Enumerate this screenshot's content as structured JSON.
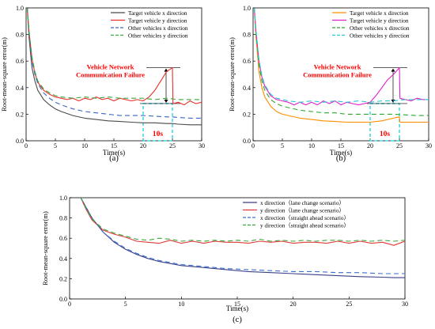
{
  "chart_data": [
    {
      "type": "line",
      "panel_label": "(a)",
      "xlabel": "Time(s)",
      "ylabel": "Root-mean-square error(m)",
      "xlim": [
        0,
        30
      ],
      "ylim": [
        0,
        1.0
      ],
      "xticks": [
        0,
        5,
        10,
        15,
        20,
        25,
        30
      ],
      "yticks": [
        0.0,
        0.2,
        0.4,
        0.6,
        0.8,
        1.0
      ],
      "legend_position": "top-right",
      "annotation": {
        "text": "Vehicle Network\nCommunication Failure",
        "color": "#ff0000"
      },
      "duration_label": "10s",
      "failure_window": [
        20,
        25
      ],
      "series": [
        {
          "name": "Target vehicle x direction",
          "color": "#4a4a4a",
          "dash": "",
          "x": [
            0.2,
            0.5,
            1,
            1.5,
            2,
            3,
            4,
            5,
            6,
            8,
            10,
            12,
            14,
            16,
            18,
            20,
            22,
            24,
            25,
            26,
            28,
            30
          ],
          "y": [
            1.0,
            0.78,
            0.55,
            0.45,
            0.38,
            0.31,
            0.27,
            0.24,
            0.22,
            0.19,
            0.17,
            0.16,
            0.15,
            0.145,
            0.14,
            0.135,
            0.135,
            0.13,
            0.13,
            0.125,
            0.12,
            0.12
          ]
        },
        {
          "name": "Target vehicle y direction",
          "color": "#e8302a",
          "dash": "",
          "x": [
            0.2,
            0.5,
            1,
            1.5,
            2,
            3,
            4,
            5,
            6,
            7,
            8,
            9,
            10,
            11,
            12,
            13,
            14,
            15,
            16,
            17,
            18,
            19,
            20,
            21,
            22,
            23,
            24,
            25,
            25.1,
            26,
            27,
            28,
            29,
            30
          ],
          "y": [
            1.0,
            0.82,
            0.62,
            0.51,
            0.44,
            0.38,
            0.35,
            0.33,
            0.32,
            0.31,
            0.32,
            0.3,
            0.32,
            0.31,
            0.33,
            0.31,
            0.32,
            0.3,
            0.32,
            0.31,
            0.3,
            0.31,
            0.3,
            0.33,
            0.38,
            0.45,
            0.52,
            0.55,
            0.28,
            0.29,
            0.27,
            0.3,
            0.28,
            0.29
          ]
        },
        {
          "name": "Other vehicles x direction",
          "color": "#3a66c4",
          "dash": "6,4",
          "x": [
            0.2,
            0.5,
            1,
            1.5,
            2,
            3,
            4,
            5,
            6,
            8,
            10,
            12,
            14,
            16,
            18,
            20,
            22,
            24,
            25,
            26,
            28,
            30
          ],
          "y": [
            1.0,
            0.8,
            0.6,
            0.5,
            0.43,
            0.36,
            0.32,
            0.29,
            0.27,
            0.24,
            0.22,
            0.21,
            0.2,
            0.19,
            0.19,
            0.19,
            0.185,
            0.18,
            0.18,
            0.175,
            0.17,
            0.17
          ]
        },
        {
          "name": "Other vehicles y direction",
          "color": "#3aa83a",
          "dash": "6,4",
          "x": [
            0.2,
            0.5,
            1,
            1.5,
            2,
            3,
            4,
            5,
            6,
            8,
            10,
            12,
            14,
            16,
            18,
            20,
            22,
            24,
            26,
            28,
            30
          ],
          "y": [
            1.0,
            0.83,
            0.63,
            0.52,
            0.45,
            0.39,
            0.36,
            0.34,
            0.33,
            0.32,
            0.33,
            0.32,
            0.33,
            0.32,
            0.32,
            0.32,
            0.31,
            0.32,
            0.31,
            0.31,
            0.31
          ]
        }
      ]
    },
    {
      "type": "line",
      "panel_label": "(b)",
      "xlabel": "Time(s)",
      "ylabel": "Root-mean-square error(m)",
      "xlim": [
        0,
        30
      ],
      "ylim": [
        0,
        1.0
      ],
      "xticks": [
        0,
        5,
        10,
        15,
        20,
        25,
        30
      ],
      "yticks": [
        0.0,
        0.2,
        0.4,
        0.6,
        0.8,
        1.0
      ],
      "legend_position": "top-right",
      "annotation": {
        "text": "Vehicle Network\nCommunication Failure",
        "color": "#ff0000"
      },
      "duration_label": "10s",
      "failure_window": [
        20,
        25
      ],
      "series": [
        {
          "name": "Target vehicle x direction",
          "color": "#ff8c00",
          "dash": "",
          "x": [
            0.2,
            0.5,
            1,
            1.5,
            2,
            3,
            4,
            5,
            6,
            8,
            10,
            12,
            14,
            16,
            18,
            20,
            22,
            24,
            25,
            25.1,
            26,
            28,
            30
          ],
          "y": [
            1.0,
            0.78,
            0.52,
            0.4,
            0.33,
            0.26,
            0.22,
            0.2,
            0.19,
            0.17,
            0.16,
            0.15,
            0.145,
            0.14,
            0.14,
            0.14,
            0.15,
            0.17,
            0.18,
            0.14,
            0.14,
            0.14,
            0.14
          ]
        },
        {
          "name": "Target vehicle y direction",
          "color": "#e020c8",
          "dash": "",
          "x": [
            0.2,
            0.5,
            1,
            1.5,
            2,
            3,
            4,
            5,
            6,
            7,
            8,
            9,
            10,
            11,
            12,
            13,
            14,
            15,
            16,
            17,
            18,
            19,
            20,
            21,
            22,
            23,
            24,
            25,
            25.1,
            26,
            27,
            28,
            29,
            30
          ],
          "y": [
            1.0,
            0.82,
            0.6,
            0.48,
            0.41,
            0.34,
            0.31,
            0.3,
            0.29,
            0.27,
            0.29,
            0.27,
            0.29,
            0.27,
            0.3,
            0.28,
            0.3,
            0.27,
            0.29,
            0.28,
            0.27,
            0.28,
            0.29,
            0.34,
            0.4,
            0.46,
            0.5,
            0.55,
            0.32,
            0.31,
            0.3,
            0.32,
            0.31,
            0.31
          ]
        },
        {
          "name": "Other vehicles x direction",
          "color": "#2fa82f",
          "dash": "6,4",
          "x": [
            0.2,
            0.5,
            1,
            1.5,
            2,
            3,
            4,
            5,
            6,
            8,
            10,
            12,
            14,
            16,
            18,
            20,
            22,
            24,
            26,
            28,
            30
          ],
          "y": [
            1.0,
            0.8,
            0.57,
            0.45,
            0.38,
            0.31,
            0.28,
            0.26,
            0.25,
            0.23,
            0.22,
            0.21,
            0.21,
            0.2,
            0.2,
            0.2,
            0.2,
            0.2,
            0.195,
            0.19,
            0.19
          ]
        },
        {
          "name": "Other vehicles y direction",
          "color": "#29c4d8",
          "dash": "6,4",
          "x": [
            0.2,
            0.5,
            1,
            1.5,
            2,
            3,
            4,
            5,
            6,
            8,
            10,
            12,
            14,
            16,
            18,
            20,
            22,
            24,
            26,
            28,
            30
          ],
          "y": [
            1.0,
            0.83,
            0.61,
            0.49,
            0.42,
            0.35,
            0.32,
            0.31,
            0.3,
            0.29,
            0.3,
            0.29,
            0.3,
            0.29,
            0.3,
            0.29,
            0.3,
            0.3,
            0.31,
            0.31,
            0.31
          ]
        }
      ]
    },
    {
      "type": "line",
      "panel_label": "(c)",
      "xlabel": "Time(s)",
      "ylabel": "Root-mean-square error(m)",
      "xlim": [
        0,
        30
      ],
      "ylim": [
        0,
        1.0
      ],
      "xticks": [
        0,
        5,
        10,
        15,
        20,
        25,
        30
      ],
      "yticks": [
        0.0,
        0.2,
        0.4,
        0.6,
        0.8,
        1.0
      ],
      "legend_position": "top-right",
      "series": [
        {
          "name": "x direction（lane change scenario）",
          "color": "#3a3f88",
          "dash": "",
          "x": [
            1,
            1.5,
            2,
            3,
            4,
            5,
            6,
            7,
            8,
            9,
            10,
            12,
            14,
            16,
            18,
            20,
            22,
            24,
            26,
            28,
            29,
            30
          ],
          "y": [
            1.0,
            0.9,
            0.8,
            0.66,
            0.56,
            0.49,
            0.44,
            0.4,
            0.37,
            0.35,
            0.33,
            0.31,
            0.29,
            0.27,
            0.26,
            0.25,
            0.24,
            0.23,
            0.22,
            0.215,
            0.21,
            0.21
          ]
        },
        {
          "name": "y direction（lane change scenario）",
          "color": "#e03a3a",
          "dash": "",
          "x": [
            1,
            1.5,
            2,
            3,
            4,
            5,
            6,
            7,
            8,
            9,
            10,
            11,
            12,
            13,
            14,
            15,
            16,
            17,
            18,
            19,
            20,
            21,
            22,
            23,
            24,
            25,
            26,
            27,
            28,
            29,
            30
          ],
          "y": [
            1.0,
            0.88,
            0.78,
            0.68,
            0.64,
            0.61,
            0.57,
            0.56,
            0.55,
            0.58,
            0.55,
            0.57,
            0.55,
            0.57,
            0.56,
            0.56,
            0.55,
            0.57,
            0.56,
            0.57,
            0.55,
            0.56,
            0.56,
            0.55,
            0.57,
            0.55,
            0.57,
            0.55,
            0.56,
            0.53,
            0.57
          ]
        },
        {
          "name": "x direction（straight ahead scenario）",
          "color": "#3a6fd0",
          "dash": "6,4",
          "x": [
            1,
            1.5,
            2,
            3,
            4,
            5,
            6,
            7,
            8,
            9,
            10,
            12,
            14,
            16,
            18,
            20,
            22,
            24,
            26,
            28,
            29,
            30
          ],
          "y": [
            1.0,
            0.9,
            0.8,
            0.66,
            0.57,
            0.5,
            0.45,
            0.41,
            0.38,
            0.36,
            0.34,
            0.32,
            0.3,
            0.29,
            0.28,
            0.27,
            0.27,
            0.26,
            0.26,
            0.25,
            0.25,
            0.25
          ]
        },
        {
          "name": "y direction（straight ahead scenario）",
          "color": "#3aa83a",
          "dash": "6,4",
          "x": [
            1,
            1.5,
            2,
            3,
            4,
            5,
            6,
            7,
            8,
            9,
            10,
            11,
            12,
            13,
            14,
            15,
            16,
            17,
            18,
            19,
            20,
            21,
            22,
            23,
            24,
            25,
            26,
            27,
            28,
            29,
            30
          ],
          "y": [
            1.0,
            0.89,
            0.79,
            0.69,
            0.65,
            0.62,
            0.59,
            0.58,
            0.6,
            0.59,
            0.57,
            0.58,
            0.57,
            0.58,
            0.57,
            0.58,
            0.57,
            0.59,
            0.57,
            0.58,
            0.57,
            0.58,
            0.57,
            0.58,
            0.58,
            0.57,
            0.58,
            0.57,
            0.58,
            0.57,
            0.58
          ]
        }
      ]
    }
  ]
}
